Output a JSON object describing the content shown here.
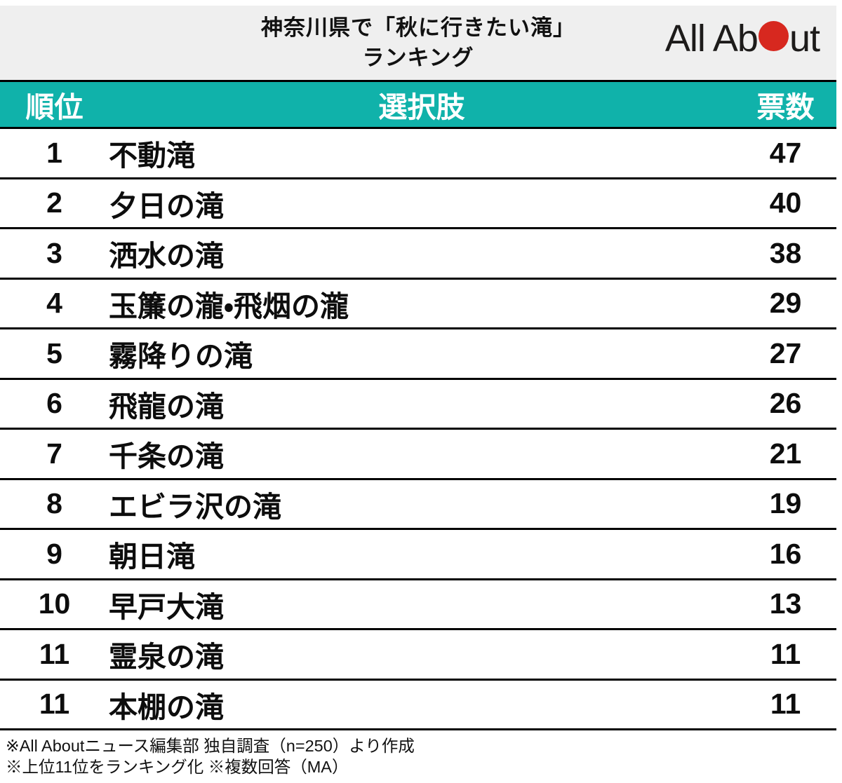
{
  "header": {
    "title_lines": [
      "神奈川県で「秋に行きたい滝」",
      "ランキング"
    ],
    "logo": {
      "text_before_dot": "All Ab",
      "text_after_dot": "ut"
    }
  },
  "table": {
    "columns": {
      "rank": "順位",
      "choice": "選択肢",
      "votes": "票数"
    },
    "rows": [
      {
        "rank": "1",
        "name": "不動滝",
        "votes": "47"
      },
      {
        "rank": "2",
        "name": "夕日の滝",
        "votes": "40"
      },
      {
        "rank": "3",
        "name": "洒水の滝",
        "votes": "38"
      },
      {
        "rank": "4",
        "name": "玉簾の瀧・飛烟の瀧",
        "votes": "29"
      },
      {
        "rank": "5",
        "name": "霧降りの滝",
        "votes": "27"
      },
      {
        "rank": "6",
        "name": "飛龍の滝",
        "votes": "26"
      },
      {
        "rank": "7",
        "name": "千条の滝",
        "votes": "21"
      },
      {
        "rank": "8",
        "name": "エビラ沢の滝",
        "votes": "19"
      },
      {
        "rank": "9",
        "name": "朝日滝",
        "votes": "16"
      },
      {
        "rank": "10",
        "name": "早戸大滝",
        "votes": "13"
      },
      {
        "rank": "11",
        "name": "霊泉の滝",
        "votes": "11"
      },
      {
        "rank": "11",
        "name": "本棚の滝",
        "votes": "11"
      }
    ]
  },
  "footer": {
    "note1": "※All Aboutニュース編集部 独自調査（n=250）より作成",
    "note2": "※上位11位をランキング化 ※複数回答（MA）"
  },
  "colors": {
    "table_header_bg": "#10b2aa",
    "page_header_bg": "#efefef",
    "logo_dot_red": "#d7281f",
    "border_black": "#000000"
  },
  "chart_data": {
    "type": "table",
    "title": "神奈川県で「秋に行きたい滝」ランキング",
    "columns": [
      "順位",
      "選択肢",
      "票数"
    ],
    "rows": [
      [
        1,
        "不動滝",
        47
      ],
      [
        2,
        "夕日の滝",
        40
      ],
      [
        3,
        "洒水の滝",
        38
      ],
      [
        4,
        "玉簾の瀧・飛烟の瀧",
        29
      ],
      [
        5,
        "霧降りの滝",
        27
      ],
      [
        6,
        "飛龍の滝",
        26
      ],
      [
        7,
        "千条の滝",
        21
      ],
      [
        8,
        "エビラ沢の滝",
        19
      ],
      [
        9,
        "朝日滝",
        16
      ],
      [
        10,
        "早戸大滝",
        13
      ],
      [
        11,
        "霊泉の滝",
        11
      ],
      [
        11,
        "本棚の滝",
        11
      ]
    ],
    "notes": [
      "※All Aboutニュース編集部 独自調査（n=250）より作成",
      "※上位11位をランキング化 ※複数回答（MA）"
    ],
    "source_logo": "All About"
  }
}
